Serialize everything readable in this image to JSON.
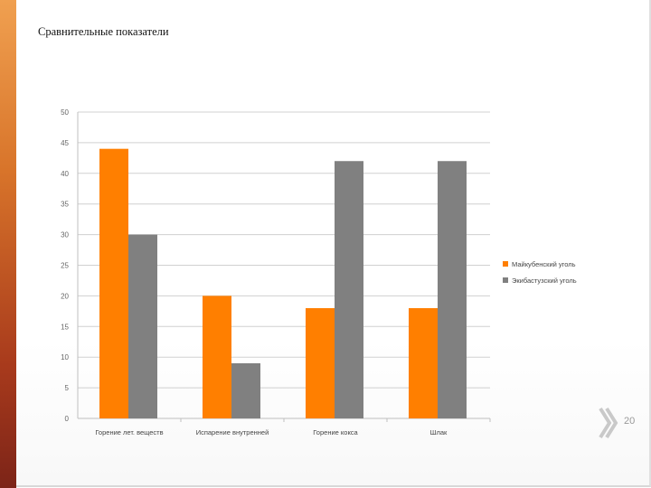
{
  "slide": {
    "title": "Сравнительные показатели",
    "page_number": "20"
  },
  "colors": {
    "series1": "#ff7f00",
    "series2": "#808080",
    "grid": "#d0d0d0",
    "accent": "#d8742a"
  },
  "icons": {
    "nav": "double-chevron-right-icon"
  },
  "chart_data": {
    "type": "bar",
    "title": "",
    "xlabel": "",
    "ylabel": "",
    "ylim": [
      0,
      50
    ],
    "yticks": [
      0,
      5,
      10,
      15,
      20,
      25,
      30,
      35,
      40,
      45,
      50
    ],
    "grid": true,
    "legend_position": "right",
    "categories": [
      "Горение лет. веществ",
      "Испарение внутренней",
      "Горение кокса",
      "Шлак"
    ],
    "series": [
      {
        "name": "Майкубенский уголь",
        "values": [
          44,
          20,
          18,
          18
        ]
      },
      {
        "name": "Экибастузский уголь",
        "values": [
          30,
          9,
          42,
          42
        ]
      }
    ]
  }
}
